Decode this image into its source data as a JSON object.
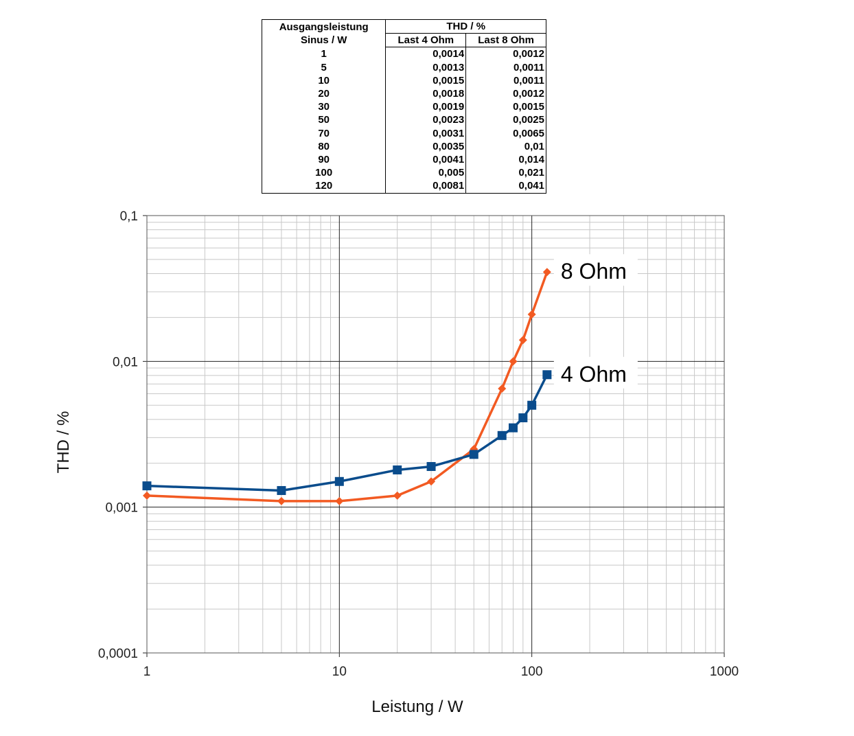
{
  "table": {
    "header": {
      "col1_line1": "Ausgangsleistung",
      "col1_line2": "Sinus / W",
      "thd": "THD / %",
      "col2": "Last 4 Ohm",
      "col3": "Last 8 Ohm"
    },
    "rows": [
      {
        "p": "1",
        "ohm4": "0,0014",
        "ohm8": "0,0012"
      },
      {
        "p": "5",
        "ohm4": "0,0013",
        "ohm8": "0,0011"
      },
      {
        "p": "10",
        "ohm4": "0,0015",
        "ohm8": "0,0011"
      },
      {
        "p": "20",
        "ohm4": "0,0018",
        "ohm8": "0,0012"
      },
      {
        "p": "30",
        "ohm4": "0,0019",
        "ohm8": "0,0015"
      },
      {
        "p": "50",
        "ohm4": "0,0023",
        "ohm8": "0,0025"
      },
      {
        "p": "70",
        "ohm4": "0,0031",
        "ohm8": "0,0065"
      },
      {
        "p": "80",
        "ohm4": "0,0035",
        "ohm8": "0,01"
      },
      {
        "p": "90",
        "ohm4": "0,0041",
        "ohm8": "0,014"
      },
      {
        "p": "100",
        "ohm4": "0,005",
        "ohm8": "0,021"
      },
      {
        "p": "120",
        "ohm4": "0,0081",
        "ohm8": "0,041"
      }
    ]
  },
  "chart_data": {
    "type": "line",
    "xlabel": "Leistung / W",
    "ylabel": "THD / %",
    "xscale": "log",
    "yscale": "log",
    "xlim": [
      1,
      1000
    ],
    "ylim": [
      0.0001,
      0.1
    ],
    "xticks": [
      "1",
      "10",
      "100",
      "1000"
    ],
    "yticks": [
      "0,0001",
      "0,001",
      "0,01",
      "0,1"
    ],
    "grid": true,
    "x": [
      1,
      5,
      10,
      20,
      30,
      50,
      70,
      80,
      90,
      100,
      120
    ],
    "series": [
      {
        "name": "4 Ohm",
        "color": "#0a4c8c",
        "marker": "square",
        "values": [
          0.0014,
          0.0013,
          0.0015,
          0.0018,
          0.0019,
          0.0023,
          0.0031,
          0.0035,
          0.0041,
          0.005,
          0.0081
        ]
      },
      {
        "name": "8 Ohm",
        "color": "#f25a22",
        "marker": "diamond",
        "values": [
          0.0012,
          0.0011,
          0.0011,
          0.0012,
          0.0015,
          0.0025,
          0.0065,
          0.01,
          0.014,
          0.021,
          0.041
        ]
      }
    ]
  }
}
